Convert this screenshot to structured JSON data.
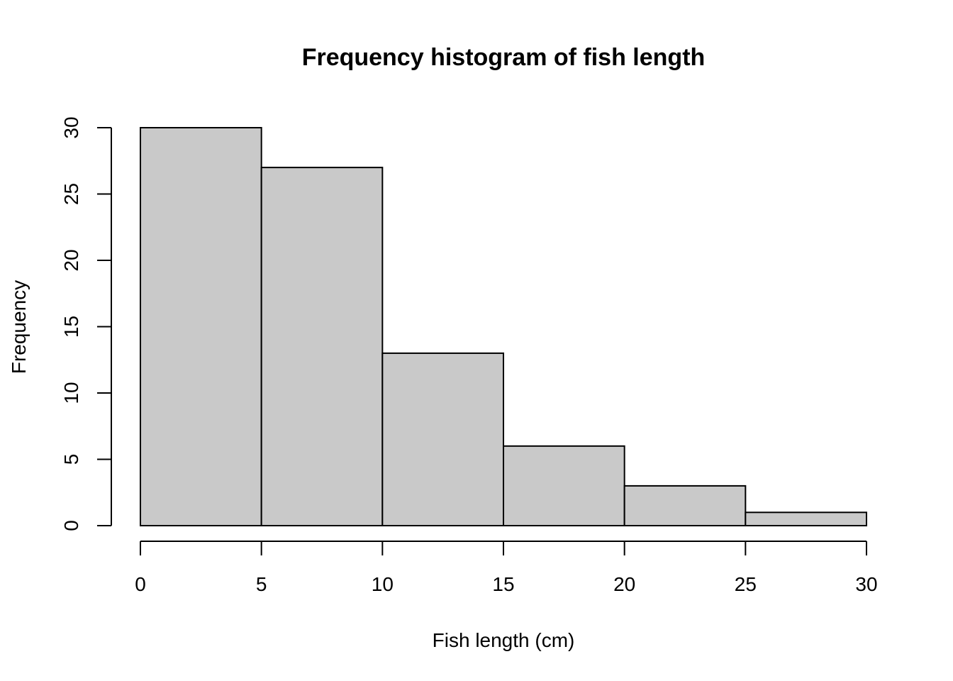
{
  "chart_data": {
    "type": "bar",
    "title": "Frequency histogram of fish length",
    "xlabel": "Fish length (cm)",
    "ylabel": "Frequency",
    "bins": [
      [
        0,
        5
      ],
      [
        5,
        10
      ],
      [
        10,
        15
      ],
      [
        15,
        20
      ],
      [
        20,
        25
      ],
      [
        25,
        30
      ]
    ],
    "values": [
      30,
      27,
      13,
      6,
      3,
      1
    ],
    "xlim": [
      0,
      30
    ],
    "ylim": [
      0,
      30
    ],
    "xticks": [
      "0",
      "5",
      "10",
      "15",
      "20",
      "25",
      "30"
    ],
    "yticks": [
      "0",
      "5",
      "10",
      "15",
      "20",
      "25",
      "30"
    ],
    "grid": false,
    "bar_color": "#c9c9c9",
    "edge_color": "#000000"
  }
}
